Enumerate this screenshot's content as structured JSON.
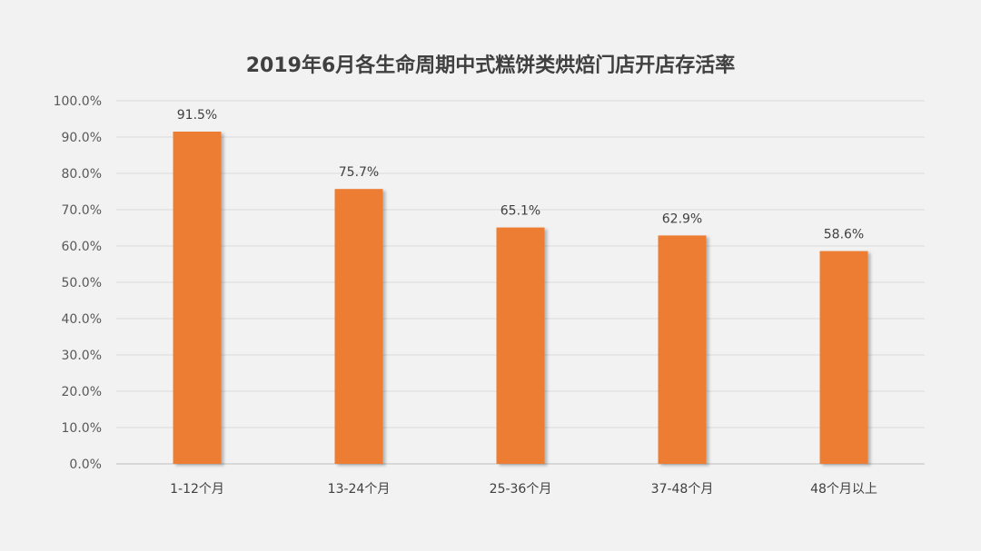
{
  "chart_data": {
    "type": "bar",
    "title": "2019年6月各生命周期中式糕饼类烘焙门店开店存活率",
    "categories": [
      "1-12个月",
      "13-24个月",
      "25-36个月",
      "37-48个月",
      "48个月以上"
    ],
    "values": [
      91.5,
      75.7,
      65.1,
      62.9,
      58.6
    ],
    "value_labels": [
      "91.5%",
      "75.7%",
      "65.1%",
      "62.9%",
      "58.6%"
    ],
    "yticks": [
      "0.0%",
      "10.0%",
      "20.0%",
      "30.0%",
      "40.0%",
      "50.0%",
      "60.0%",
      "70.0%",
      "80.0%",
      "90.0%",
      "100.0%"
    ],
    "ylim": [
      0,
      100
    ],
    "xlabel": "",
    "ylabel": "",
    "grid": true,
    "legend": "none",
    "bar_color": "#ed7d31"
  }
}
